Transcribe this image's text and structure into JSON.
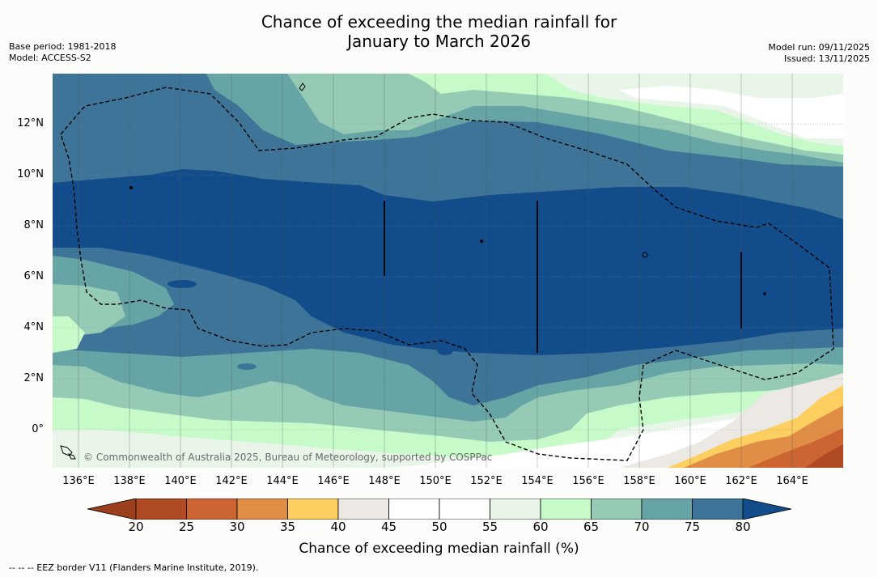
{
  "title_line1": "Chance of exceeding the median rainfall for",
  "title_line2": "January to March 2026",
  "base_period": "Base period: 1981-2018",
  "model": "Model: ACCESS-S2",
  "model_run": "Model run: 09/11/2025",
  "issued": "Issued: 13/11/2025",
  "y_ticks": [
    "12°N",
    "10°N",
    "8°N",
    "6°N",
    "4°N",
    "2°N",
    "0°"
  ],
  "x_ticks": [
    "136°E",
    "138°E",
    "140°E",
    "142°E",
    "144°E",
    "146°E",
    "148°E",
    "150°E",
    "152°E",
    "154°E",
    "156°E",
    "158°E",
    "160°E",
    "162°E",
    "164°E"
  ],
  "copyright": "© Commonwealth of Australia 2025, Bureau of Meteorology, supported by COSPPac",
  "colorbar": {
    "ticks": [
      "20",
      "25",
      "30",
      "35",
      "40",
      "45",
      "50",
      "55",
      "60",
      "65",
      "70",
      "75",
      "80"
    ],
    "colors": [
      "#9c3f1f",
      "#b04a24",
      "#cc6532",
      "#e08d45",
      "#fdce60",
      "#ece8e3",
      "#ffffff",
      "#ffffff",
      "#e9f5e9",
      "#c6fbc9",
      "#95cbb5",
      "#66a4a5",
      "#3f7499",
      "#134c8a"
    ],
    "label": "Chance of exceeding median rainfall (%)"
  },
  "footnote": "--  --  -- EEZ border V11 (Flanders Marine Institute, 2019)."
}
